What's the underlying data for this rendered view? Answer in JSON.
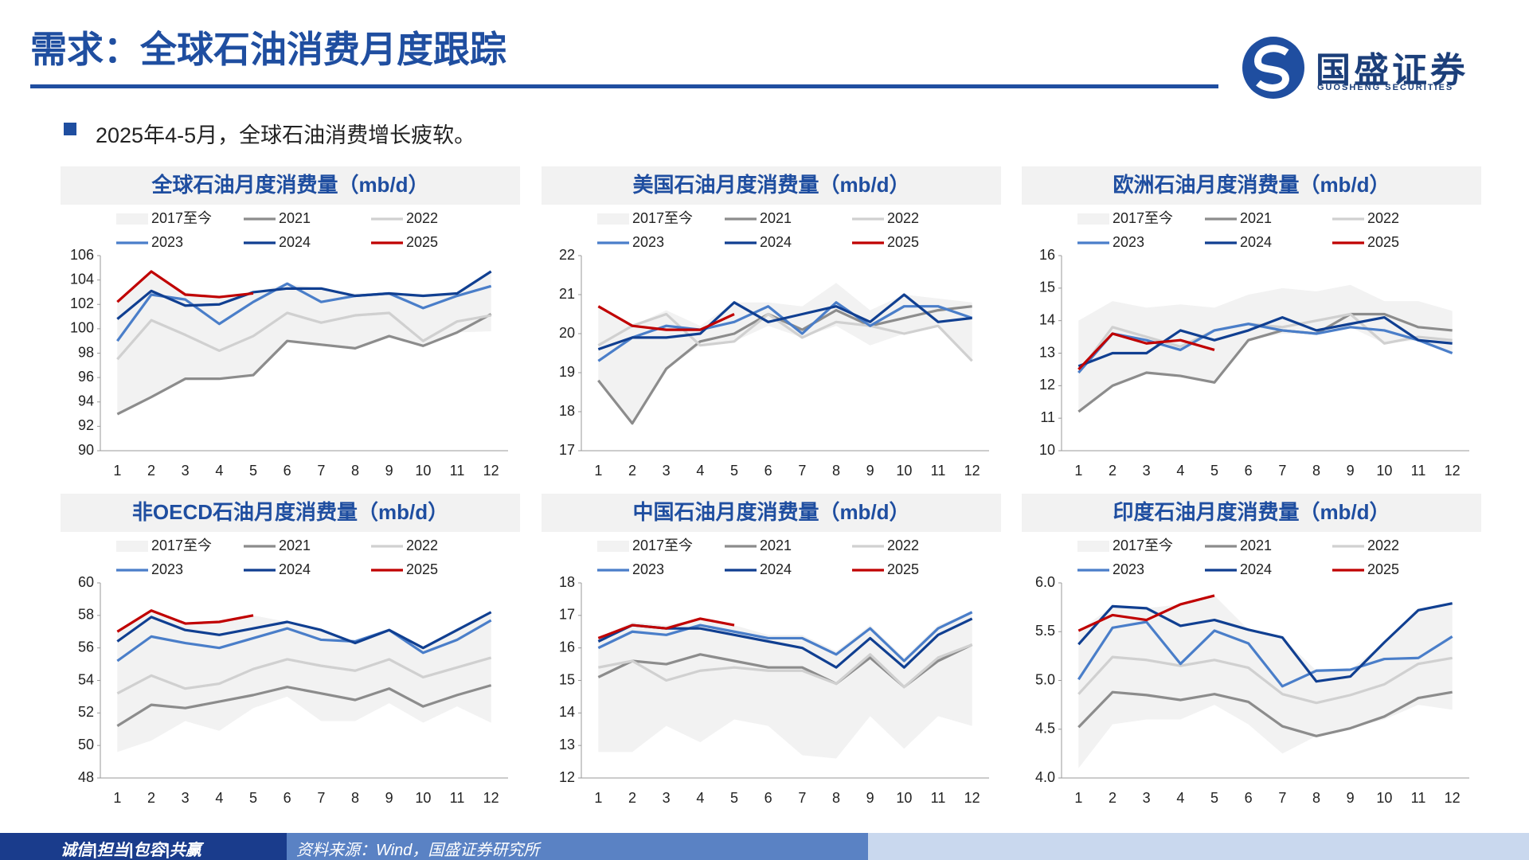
{
  "header": {
    "title": "需求：全球石油消费月度跟踪",
    "logo_name": "国盛证券",
    "logo_sub": "GUOSHENG SECURITIES"
  },
  "bullet": "2025年4-5月，全球石油消费增长疲软。",
  "footer": {
    "motto": "诚信|担当|包容|共赢",
    "source": "资料来源：Wind，国盛证券研究所"
  },
  "chart_data": [
    {
      "type": "line",
      "title": "全球石油月度消费量（mb/d）",
      "legend": "top",
      "grid": false,
      "categories": [
        "1",
        "2",
        "3",
        "4",
        "5",
        "6",
        "7",
        "8",
        "9",
        "10",
        "11",
        "12"
      ],
      "ylim": [
        90,
        106
      ],
      "yticks": [
        90,
        92,
        94,
        96,
        98,
        100,
        102,
        104,
        106
      ],
      "series": [
        {
          "name": "2017至今",
          "color": "#f2f2f2",
          "low": [
            93.0,
            94.4,
            95.9,
            95.9,
            96.2,
            99.0,
            98.7,
            98.4,
            99.4,
            98.6,
            99.7,
            99.8
          ],
          "high": [
            102.2,
            104.7,
            103.0,
            102.6,
            103.0,
            103.7,
            103.3,
            102.9,
            102.9,
            102.7,
            102.9,
            104.7
          ]
        },
        {
          "name": "2021",
          "color": "#8c8c8c",
          "values": [
            93.0,
            94.4,
            95.9,
            95.9,
            96.2,
            99.0,
            98.7,
            98.4,
            99.4,
            98.6,
            99.7,
            101.2
          ]
        },
        {
          "name": "2022",
          "color": "#d0d0d0",
          "values": [
            97.5,
            100.7,
            99.5,
            98.2,
            99.4,
            101.3,
            100.5,
            101.1,
            101.3,
            99.0,
            100.6,
            101.1
          ]
        },
        {
          "name": "2023",
          "color": "#4a7ec9",
          "values": [
            99.0,
            102.8,
            102.4,
            100.4,
            102.2,
            103.7,
            102.2,
            102.7,
            102.9,
            101.7,
            102.7,
            103.5
          ]
        },
        {
          "name": "2024",
          "color": "#103f91",
          "values": [
            100.8,
            103.1,
            101.9,
            102.0,
            103.0,
            103.3,
            103.3,
            102.7,
            102.9,
            102.7,
            102.9,
            104.7
          ]
        },
        {
          "name": "2025",
          "color": "#c00000",
          "values": [
            102.2,
            104.7,
            102.8,
            102.6,
            102.9,
            null,
            null,
            null,
            null,
            null,
            null,
            null
          ]
        }
      ]
    },
    {
      "type": "line",
      "title": "美国石油月度消费量（mb/d）",
      "legend": "top",
      "grid": false,
      "categories": [
        "1",
        "2",
        "3",
        "4",
        "5",
        "6",
        "7",
        "8",
        "9",
        "10",
        "11",
        "12"
      ],
      "ylim": [
        17,
        22
      ],
      "yticks": [
        17,
        18,
        19,
        20,
        21,
        22
      ],
      "series": [
        {
          "name": "2017至今",
          "color": "#f2f2f2",
          "low": [
            18.8,
            17.7,
            19.1,
            19.7,
            19.8,
            20.2,
            19.9,
            20.2,
            19.7,
            20.0,
            20.2,
            19.3
          ],
          "high": [
            20.7,
            20.2,
            20.6,
            20.2,
            20.8,
            20.8,
            20.7,
            21.3,
            20.6,
            21.0,
            20.9,
            20.8
          ]
        },
        {
          "name": "2021",
          "color": "#8c8c8c",
          "values": [
            18.8,
            17.7,
            19.1,
            19.8,
            20.0,
            20.5,
            20.1,
            20.6,
            20.2,
            20.4,
            20.6,
            20.7
          ]
        },
        {
          "name": "2022",
          "color": "#d0d0d0",
          "values": [
            19.7,
            20.2,
            20.5,
            19.7,
            19.8,
            20.5,
            19.9,
            20.3,
            20.2,
            20.0,
            20.2,
            19.3
          ]
        },
        {
          "name": "2023",
          "color": "#4a7ec9",
          "values": [
            19.3,
            19.9,
            20.2,
            20.1,
            20.3,
            20.7,
            20.0,
            20.8,
            20.2,
            20.7,
            20.7,
            20.4
          ]
        },
        {
          "name": "2024",
          "color": "#103f91",
          "values": [
            19.6,
            19.9,
            19.9,
            20.0,
            20.8,
            20.3,
            20.5,
            20.7,
            20.3,
            21.0,
            20.3,
            20.4
          ]
        },
        {
          "name": "2025",
          "color": "#c00000",
          "values": [
            20.7,
            20.2,
            20.1,
            20.1,
            20.5,
            null,
            null,
            null,
            null,
            null,
            null,
            null
          ]
        }
      ]
    },
    {
      "type": "line",
      "title": "欧洲石油月度消费量（mb/d）",
      "legend": "top",
      "grid": false,
      "categories": [
        "1",
        "2",
        "3",
        "4",
        "5",
        "6",
        "7",
        "8",
        "9",
        "10",
        "11",
        "12"
      ],
      "ylim": [
        10,
        16
      ],
      "yticks": [
        10,
        11,
        12,
        13,
        14,
        15,
        16
      ],
      "series": [
        {
          "name": "2017至今",
          "color": "#f2f2f2",
          "low": [
            11.2,
            12.0,
            12.4,
            12.3,
            12.1,
            13.4,
            13.6,
            13.6,
            13.8,
            13.3,
            13.4,
            13.0
          ],
          "high": [
            14.0,
            14.6,
            14.4,
            14.5,
            14.4,
            14.8,
            15.0,
            14.9,
            15.1,
            14.6,
            14.6,
            14.3
          ]
        },
        {
          "name": "2021",
          "color": "#8c8c8c",
          "values": [
            11.2,
            12.0,
            12.4,
            12.3,
            12.1,
            13.4,
            13.7,
            13.6,
            14.2,
            14.2,
            13.8,
            13.7
          ]
        },
        {
          "name": "2022",
          "color": "#d0d0d0",
          "values": [
            12.4,
            13.8,
            13.5,
            13.2,
            13.7,
            13.9,
            13.8,
            14.0,
            14.2,
            13.3,
            13.5,
            13.4
          ]
        },
        {
          "name": "2023",
          "color": "#4a7ec9",
          "values": [
            12.4,
            13.6,
            13.4,
            13.1,
            13.7,
            13.9,
            13.7,
            13.6,
            13.8,
            13.7,
            13.4,
            13.0
          ]
        },
        {
          "name": "2024",
          "color": "#103f91",
          "values": [
            12.6,
            13.0,
            13.0,
            13.7,
            13.4,
            13.7,
            14.1,
            13.7,
            13.9,
            14.1,
            13.4,
            13.3
          ]
        },
        {
          "name": "2025",
          "color": "#c00000",
          "values": [
            12.5,
            13.6,
            13.3,
            13.4,
            13.1,
            null,
            null,
            null,
            null,
            null,
            null,
            null
          ]
        }
      ]
    },
    {
      "type": "line",
      "title": "非OECD石油月度消费量（mb/d）",
      "legend": "top",
      "grid": false,
      "categories": [
        "1",
        "2",
        "3",
        "4",
        "5",
        "6",
        "7",
        "8",
        "9",
        "10",
        "11",
        "12"
      ],
      "ylim": [
        48,
        60
      ],
      "yticks": [
        48,
        50,
        52,
        54,
        56,
        58,
        60
      ],
      "series": [
        {
          "name": "2017至今",
          "color": "#f2f2f2",
          "low": [
            49.6,
            50.3,
            51.5,
            50.9,
            52.3,
            53.0,
            51.5,
            51.5,
            52.6,
            51.4,
            52.4,
            51.4
          ],
          "high": [
            57.0,
            58.3,
            57.5,
            57.6,
            58.0,
            57.6,
            57.1,
            56.4,
            57.1,
            56.0,
            57.1,
            58.2
          ]
        },
        {
          "name": "2021",
          "color": "#8c8c8c",
          "values": [
            51.2,
            52.5,
            52.3,
            52.7,
            53.1,
            53.6,
            53.2,
            52.8,
            53.5,
            52.4,
            53.1,
            53.7
          ]
        },
        {
          "name": "2022",
          "color": "#d0d0d0",
          "values": [
            53.2,
            54.3,
            53.5,
            53.8,
            54.7,
            55.3,
            54.9,
            54.6,
            55.3,
            54.2,
            54.8,
            55.4
          ]
        },
        {
          "name": "2023",
          "color": "#4a7ec9",
          "values": [
            55.2,
            56.7,
            56.3,
            56.0,
            56.6,
            57.2,
            56.5,
            56.4,
            57.1,
            55.7,
            56.5,
            57.7
          ]
        },
        {
          "name": "2024",
          "color": "#103f91",
          "values": [
            56.4,
            57.9,
            57.1,
            56.8,
            57.2,
            57.6,
            57.1,
            56.3,
            57.1,
            56.0,
            57.1,
            58.2
          ]
        },
        {
          "name": "2025",
          "color": "#c00000",
          "values": [
            57.0,
            58.3,
            57.5,
            57.6,
            58.0,
            null,
            null,
            null,
            null,
            null,
            null,
            null
          ]
        }
      ]
    },
    {
      "type": "line",
      "title": "中国石油月度消费量（mb/d）",
      "legend": "top",
      "grid": false,
      "categories": [
        "1",
        "2",
        "3",
        "4",
        "5",
        "6",
        "7",
        "8",
        "9",
        "10",
        "11",
        "12"
      ],
      "ylim": [
        12,
        18
      ],
      "yticks": [
        12,
        13,
        14,
        15,
        16,
        17,
        18
      ],
      "series": [
        {
          "name": "2017至今",
          "color": "#f2f2f2",
          "low": [
            12.8,
            12.8,
            13.6,
            13.1,
            13.8,
            13.6,
            12.7,
            12.6,
            13.9,
            12.9,
            13.9,
            13.6
          ],
          "high": [
            16.3,
            16.8,
            16.7,
            16.9,
            16.7,
            16.4,
            16.4,
            15.9,
            16.7,
            15.7,
            16.7,
            17.1
          ]
        },
        {
          "name": "2021",
          "color": "#8c8c8c",
          "values": [
            15.1,
            15.6,
            15.5,
            15.8,
            15.6,
            15.4,
            15.4,
            14.9,
            15.7,
            14.8,
            15.6,
            16.1
          ]
        },
        {
          "name": "2022",
          "color": "#d0d0d0",
          "values": [
            15.4,
            15.6,
            15.0,
            15.3,
            15.4,
            15.3,
            15.3,
            14.9,
            15.8,
            14.8,
            15.7,
            16.1
          ]
        },
        {
          "name": "2023",
          "color": "#4a7ec9",
          "values": [
            16.0,
            16.5,
            16.4,
            16.7,
            16.5,
            16.3,
            16.3,
            15.8,
            16.6,
            15.6,
            16.6,
            17.1
          ]
        },
        {
          "name": "2024",
          "color": "#103f91",
          "values": [
            16.2,
            16.7,
            16.6,
            16.6,
            16.4,
            16.2,
            16.0,
            15.4,
            16.3,
            15.4,
            16.4,
            16.9
          ]
        },
        {
          "name": "2025",
          "color": "#c00000",
          "values": [
            16.3,
            16.7,
            16.6,
            16.9,
            16.7,
            null,
            null,
            null,
            null,
            null,
            null,
            null
          ]
        }
      ]
    },
    {
      "type": "line",
      "title": "印度石油月度消费量（mb/d）",
      "legend": "top",
      "grid": false,
      "categories": [
        "1",
        "2",
        "3",
        "4",
        "5",
        "6",
        "7",
        "8",
        "9",
        "10",
        "11",
        "12"
      ],
      "ylim": [
        4,
        6
      ],
      "yticks": [
        {
          "value": 4,
          "label": "4.0"
        },
        4.5,
        {
          "value": 5,
          "label": "5.0"
        },
        5.5,
        {
          "value": 6,
          "label": "6.0"
        }
      ],
      "series": [
        {
          "name": "2017至今",
          "color": "#f2f2f2",
          "low": [
            4.1,
            4.55,
            4.6,
            4.6,
            4.75,
            4.55,
            4.25,
            4.43,
            4.51,
            4.6,
            4.75,
            4.7
          ],
          "high": [
            5.51,
            5.76,
            5.74,
            5.78,
            5.87,
            5.52,
            5.44,
            5.1,
            5.11,
            5.39,
            5.72,
            5.79
          ]
        },
        {
          "name": "2021",
          "color": "#8c8c8c",
          "values": [
            4.52,
            4.88,
            4.85,
            4.8,
            4.86,
            4.78,
            4.53,
            4.43,
            4.51,
            4.63,
            4.82,
            4.88
          ]
        },
        {
          "name": "2022",
          "color": "#d0d0d0",
          "values": [
            4.86,
            5.24,
            5.21,
            5.15,
            5.21,
            5.13,
            4.86,
            4.77,
            4.85,
            4.96,
            5.17,
            5.23
          ]
        },
        {
          "name": "2023",
          "color": "#4a7ec9",
          "values": [
            5.01,
            5.54,
            5.6,
            5.17,
            5.51,
            5.38,
            4.94,
            5.1,
            5.11,
            5.22,
            5.23,
            5.45
          ]
        },
        {
          "name": "2024",
          "color": "#103f91",
          "values": [
            5.37,
            5.76,
            5.74,
            5.56,
            5.62,
            5.52,
            5.44,
            4.99,
            5.04,
            5.39,
            5.72,
            5.79
          ]
        },
        {
          "name": "2025",
          "color": "#c00000",
          "values": [
            5.51,
            5.67,
            5.62,
            5.78,
            5.87,
            null,
            null,
            null,
            null,
            null,
            null,
            null
          ]
        }
      ]
    }
  ]
}
